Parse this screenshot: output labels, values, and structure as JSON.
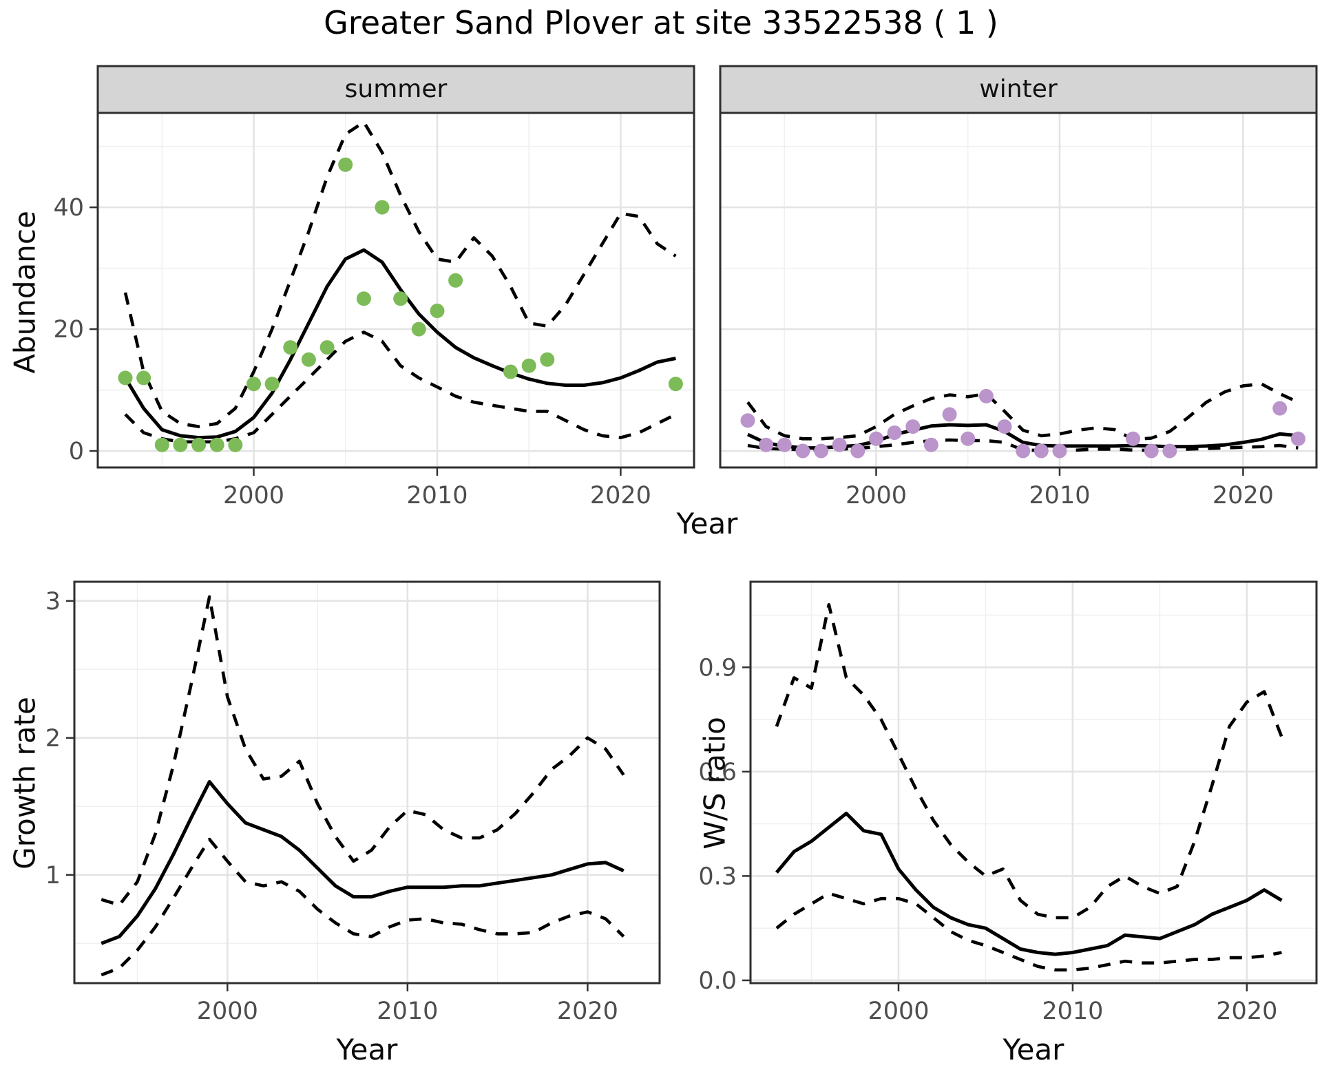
{
  "title": "Greater Sand Plover at site 33522538 ( 1 )",
  "axis_labels": {
    "x": "Year",
    "abundance": "Abundance",
    "growth_rate": "Growth rate",
    "ws_ratio": "W/S ratio"
  },
  "styles": {
    "point_green": "#7CBB57",
    "point_purple": "#BA94CB",
    "line_color": "#000000",
    "strip_bg": "#D5D5D5",
    "grid_major": "#E4E4E4",
    "grid_minor": "#F0F0F0",
    "tick_label_color": "#4D4D4D"
  },
  "chart_data": [
    {
      "id": "abundance-summer",
      "type": "line+scatter",
      "facet_label": "summer",
      "xlabel": "Year",
      "ylabel": "Abundance",
      "xlim": [
        1991.5,
        2024.0
      ],
      "ylim": [
        -2.71,
        55.5
      ],
      "xticks": {
        "values": [
          2000,
          2010,
          2020
        ],
        "labels": [
          "2000",
          "2010",
          "2020"
        ]
      },
      "x_minor": [
        1995,
        2005,
        2015
      ],
      "yticks": {
        "values": [
          0,
          20,
          40
        ],
        "labels": [
          "0",
          "20",
          "40"
        ]
      },
      "y_minor": [
        10,
        30,
        50
      ],
      "series": [
        {
          "name": "mean",
          "style": "solid",
          "x": [
            1993,
            1994,
            1995,
            1996,
            1997,
            1998,
            1999,
            2000,
            2001,
            2002,
            2003,
            2004,
            2005,
            2006,
            2007,
            2008,
            2009,
            2010,
            2011,
            2012,
            2013,
            2014,
            2015,
            2016,
            2017,
            2018,
            2019,
            2020,
            2021,
            2022,
            2023
          ],
          "y": [
            12,
            7,
            3.5,
            2.5,
            2.2,
            2.3,
            3.2,
            5.5,
            9.5,
            15,
            21,
            27,
            31.5,
            33,
            31,
            26.5,
            22.5,
            19.5,
            17,
            15.3,
            14,
            12.8,
            11.8,
            11.1,
            10.8,
            10.8,
            11.2,
            12,
            13.2,
            14.6,
            15.2
          ]
        },
        {
          "name": "upper-ci",
          "style": "dashed",
          "x": [
            1993,
            1994,
            1995,
            1996,
            1997,
            1998,
            1999,
            2000,
            2001,
            2002,
            2003,
            2004,
            2005,
            2006,
            2007,
            2008,
            2009,
            2010,
            2011,
            2012,
            2013,
            2014,
            2015,
            2016,
            2017,
            2018,
            2019,
            2020,
            2021,
            2022,
            2023
          ],
          "y": [
            26,
            13,
            6.5,
            4.5,
            4,
            4.5,
            7,
            13,
            20,
            28,
            36,
            45,
            52,
            54,
            49,
            42,
            36,
            31.5,
            31,
            35,
            32,
            27,
            21,
            20.5,
            24,
            29,
            34,
            39,
            38.5,
            34,
            32
          ]
        },
        {
          "name": "lower-ci",
          "style": "dashed",
          "x": [
            1993,
            1994,
            1995,
            1996,
            1997,
            1998,
            1999,
            2000,
            2001,
            2002,
            2003,
            2004,
            2005,
            2006,
            2007,
            2008,
            2009,
            2010,
            2011,
            2012,
            2013,
            2014,
            2015,
            2016,
            2017,
            2018,
            2019,
            2020,
            2021,
            2022,
            2023
          ],
          "y": [
            6,
            3,
            2,
            1.5,
            1.5,
            1.5,
            2,
            3,
            6,
            9,
            12,
            15,
            18,
            19.5,
            18,
            14,
            12,
            10.5,
            9,
            8,
            7.5,
            7,
            6.5,
            6.5,
            5,
            3.5,
            2.5,
            2.2,
            3,
            4.5,
            6
          ]
        }
      ],
      "points": {
        "color_key": "point_green",
        "x": [
          1993,
          1994,
          1995,
          1996,
          1997,
          1998,
          1999,
          2000,
          2001,
          2002,
          2003,
          2004,
          2005,
          2006,
          2007,
          2008,
          2009,
          2010,
          2011,
          2014,
          2015,
          2016,
          2023
        ],
        "y": [
          12,
          12,
          1,
          1,
          1,
          1,
          1,
          11,
          11,
          17,
          15,
          17,
          47,
          25,
          40,
          25,
          20,
          23,
          28,
          13,
          14,
          15,
          11
        ]
      }
    },
    {
      "id": "abundance-winter",
      "type": "line+scatter",
      "facet_label": "winter",
      "xlabel": "Year",
      "ylabel": "Abundance",
      "xlim": [
        1991.5,
        2024.0
      ],
      "ylim": [
        -2.71,
        55.5
      ],
      "xticks": {
        "values": [
          2000,
          2010,
          2020
        ],
        "labels": [
          "2000",
          "2010",
          "2020"
        ]
      },
      "x_minor": [
        1995,
        2005,
        2015
      ],
      "yticks": {
        "values": [
          0,
          20,
          40
        ],
        "labels": [
          "0",
          "20",
          "40"
        ]
      },
      "y_minor": [
        10,
        30,
        50
      ],
      "series": [
        {
          "name": "mean",
          "style": "solid",
          "x": [
            1993,
            1994,
            1995,
            1996,
            1997,
            1998,
            1999,
            2000,
            2001,
            2002,
            2003,
            2004,
            2005,
            2006,
            2007,
            2008,
            2009,
            2010,
            2011,
            2012,
            2013,
            2014,
            2015,
            2016,
            2017,
            2018,
            2019,
            2020,
            2021,
            2022,
            2023
          ],
          "y": [
            2.7,
            1.3,
            0.8,
            0.5,
            0.5,
            0.7,
            0.9,
            1.6,
            2.7,
            3.4,
            4.1,
            4.3,
            4.2,
            4.3,
            3.2,
            1.4,
            0.9,
            0.8,
            0.8,
            0.8,
            0.8,
            0.9,
            0.8,
            0.7,
            0.7,
            0.8,
            1.0,
            1.4,
            1.9,
            2.8,
            2.5
          ]
        },
        {
          "name": "upper-ci",
          "style": "dashed",
          "x": [
            1993,
            1994,
            1995,
            1996,
            1997,
            1998,
            1999,
            2000,
            2001,
            2002,
            2003,
            2004,
            2005,
            2006,
            2007,
            2008,
            2009,
            2010,
            2011,
            2012,
            2013,
            2014,
            2015,
            2016,
            2017,
            2018,
            2019,
            2020,
            2021,
            2022,
            2023
          ],
          "y": [
            8,
            4,
            2.5,
            2,
            2,
            2.2,
            2.5,
            4,
            6,
            7.4,
            8.6,
            9.2,
            8.9,
            9.4,
            6.5,
            3.4,
            2.5,
            2.8,
            3.4,
            3.8,
            3.5,
            1.9,
            2.1,
            3.2,
            5.5,
            8,
            9.7,
            10.7,
            11,
            9.4,
            8
          ]
        },
        {
          "name": "lower-ci",
          "style": "dashed",
          "x": [
            1993,
            1994,
            1995,
            1996,
            1997,
            1998,
            1999,
            2000,
            2001,
            2002,
            2003,
            2004,
            2005,
            2006,
            2007,
            2008,
            2009,
            2010,
            2011,
            2012,
            2013,
            2014,
            2015,
            2016,
            2017,
            2018,
            2019,
            2020,
            2021,
            2022,
            2023
          ],
          "y": [
            0.9,
            0.4,
            0.3,
            0.2,
            0.2,
            0.3,
            0.4,
            0.7,
            1.0,
            1.4,
            1.7,
            1.8,
            1.7,
            1.7,
            1.4,
            0.15,
            0.1,
            0.1,
            0.15,
            0.3,
            0.3,
            0.15,
            0.1,
            0.15,
            0.3,
            0.4,
            0.5,
            0.6,
            0.7,
            0.9,
            0.5
          ]
        }
      ],
      "points": {
        "color_key": "point_purple",
        "x": [
          1993,
          1994,
          1995,
          1996,
          1997,
          1998,
          1999,
          2000,
          2001,
          2002,
          2003,
          2004,
          2005,
          2006,
          2007,
          2008,
          2009,
          2010,
          2014,
          2015,
          2016,
          2022,
          2023
        ],
        "y": [
          5,
          1,
          1,
          0,
          0,
          1,
          0,
          2,
          3,
          4,
          1,
          6,
          2,
          9,
          4,
          0,
          0,
          0,
          2,
          0,
          0,
          7,
          2
        ]
      }
    },
    {
      "id": "growth-rate",
      "type": "line",
      "facet_label": "",
      "xlabel": "Year",
      "ylabel": "Growth rate",
      "xlim": [
        1991.5,
        2024.0
      ],
      "ylim": [
        0.21,
        3.14
      ],
      "xticks": {
        "values": [
          2000,
          2010,
          2020
        ],
        "labels": [
          "2000",
          "2010",
          "2020"
        ]
      },
      "x_minor": [
        1995,
        2005,
        2015
      ],
      "yticks": {
        "values": [
          1,
          2,
          3
        ],
        "labels": [
          "1",
          "2",
          "3"
        ]
      },
      "y_minor": [
        0.5,
        1.5,
        2.5
      ],
      "series": [
        {
          "name": "mean",
          "style": "solid",
          "x": [
            1993,
            1994,
            1995,
            1996,
            1997,
            1998,
            1999,
            2000,
            2001,
            2002,
            2003,
            2004,
            2005,
            2006,
            2007,
            2008,
            2009,
            2010,
            2011,
            2012,
            2013,
            2014,
            2015,
            2016,
            2017,
            2018,
            2019,
            2020,
            2021,
            2022
          ],
          "y": [
            0.5,
            0.55,
            0.7,
            0.9,
            1.15,
            1.42,
            1.68,
            1.52,
            1.38,
            1.33,
            1.28,
            1.18,
            1.05,
            0.92,
            0.84,
            0.84,
            0.88,
            0.91,
            0.91,
            0.91,
            0.92,
            0.92,
            0.94,
            0.96,
            0.98,
            1.0,
            1.04,
            1.08,
            1.09,
            1.03
          ]
        },
        {
          "name": "upper-ci",
          "style": "dashed",
          "x": [
            1993,
            1994,
            1995,
            1996,
            1997,
            1998,
            1999,
            2000,
            2001,
            2002,
            2003,
            2004,
            2005,
            2006,
            2007,
            2008,
            2009,
            2010,
            2011,
            2012,
            2013,
            2014,
            2015,
            2016,
            2017,
            2018,
            2019,
            2020,
            2021,
            2022
          ],
          "y": [
            0.82,
            0.78,
            0.95,
            1.3,
            1.8,
            2.4,
            3.03,
            2.3,
            1.92,
            1.7,
            1.72,
            1.83,
            1.52,
            1.28,
            1.1,
            1.18,
            1.35,
            1.47,
            1.44,
            1.33,
            1.27,
            1.27,
            1.33,
            1.45,
            1.6,
            1.77,
            1.87,
            2.0,
            1.92,
            1.73
          ]
        },
        {
          "name": "lower-ci",
          "style": "dashed",
          "x": [
            1993,
            1994,
            1995,
            1996,
            1997,
            1998,
            1999,
            2000,
            2001,
            2002,
            2003,
            2004,
            2005,
            2006,
            2007,
            2008,
            2009,
            2010,
            2011,
            2012,
            2013,
            2014,
            2015,
            2016,
            2017,
            2018,
            2019,
            2020,
            2021,
            2022
          ],
          "y": [
            0.27,
            0.32,
            0.45,
            0.62,
            0.83,
            1.05,
            1.26,
            1.1,
            0.95,
            0.92,
            0.95,
            0.88,
            0.75,
            0.65,
            0.57,
            0.55,
            0.62,
            0.67,
            0.68,
            0.65,
            0.64,
            0.6,
            0.57,
            0.57,
            0.58,
            0.65,
            0.7,
            0.73,
            0.68,
            0.55
          ]
        }
      ],
      "points": null
    },
    {
      "id": "ws-ratio",
      "type": "line",
      "facet_label": "",
      "xlabel": "Year",
      "ylabel": "W/S ratio",
      "xlim": [
        1991.5,
        2024.0
      ],
      "ylim": [
        -0.008,
        1.146
      ],
      "xticks": {
        "values": [
          2000,
          2010,
          2020
        ],
        "labels": [
          "2000",
          "2010",
          "2020"
        ]
      },
      "x_minor": [
        1995,
        2005,
        2015
      ],
      "yticks": {
        "values": [
          0.0,
          0.3,
          0.6,
          0.9
        ],
        "labels": [
          "0.0",
          "0.3",
          "0.6",
          "0.9"
        ]
      },
      "y_minor": [
        0.15,
        0.45,
        0.75,
        1.05
      ],
      "series": [
        {
          "name": "mean",
          "style": "solid",
          "x": [
            1993,
            1994,
            1995,
            1996,
            1997,
            1998,
            1999,
            2000,
            2001,
            2002,
            2003,
            2004,
            2005,
            2006,
            2007,
            2008,
            2009,
            2010,
            2011,
            2012,
            2013,
            2014,
            2015,
            2016,
            2017,
            2018,
            2019,
            2020,
            2021,
            2022
          ],
          "y": [
            0.31,
            0.37,
            0.4,
            0.44,
            0.48,
            0.43,
            0.42,
            0.32,
            0.26,
            0.21,
            0.18,
            0.16,
            0.15,
            0.12,
            0.09,
            0.08,
            0.075,
            0.08,
            0.09,
            0.1,
            0.13,
            0.125,
            0.12,
            0.14,
            0.16,
            0.19,
            0.21,
            0.23,
            0.26,
            0.23
          ]
        },
        {
          "name": "upper-ci",
          "style": "dashed",
          "x": [
            1993,
            1994,
            1995,
            1996,
            1997,
            1998,
            1999,
            2000,
            2001,
            2002,
            2003,
            2004,
            2005,
            2006,
            2007,
            2008,
            2009,
            2010,
            2011,
            2012,
            2013,
            2014,
            2015,
            2016,
            2017,
            2018,
            2019,
            2020,
            2021,
            2022
          ],
          "y": [
            0.73,
            0.87,
            0.84,
            1.08,
            0.87,
            0.82,
            0.75,
            0.65,
            0.55,
            0.46,
            0.39,
            0.34,
            0.3,
            0.32,
            0.23,
            0.19,
            0.18,
            0.18,
            0.21,
            0.27,
            0.3,
            0.27,
            0.25,
            0.27,
            0.4,
            0.56,
            0.73,
            0.8,
            0.83,
            0.7
          ]
        },
        {
          "name": "lower-ci",
          "style": "dashed",
          "x": [
            1993,
            1994,
            1995,
            1996,
            1997,
            1998,
            1999,
            2000,
            2001,
            2002,
            2003,
            2004,
            2005,
            2006,
            2007,
            2008,
            2009,
            2010,
            2011,
            2012,
            2013,
            2014,
            2015,
            2016,
            2017,
            2018,
            2019,
            2020,
            2021,
            2022
          ],
          "y": [
            0.15,
            0.19,
            0.22,
            0.25,
            0.235,
            0.22,
            0.235,
            0.235,
            0.22,
            0.18,
            0.14,
            0.115,
            0.1,
            0.08,
            0.06,
            0.04,
            0.03,
            0.03,
            0.035,
            0.045,
            0.055,
            0.05,
            0.05,
            0.055,
            0.06,
            0.06,
            0.065,
            0.065,
            0.07,
            0.08
          ]
        }
      ],
      "points": null
    }
  ]
}
